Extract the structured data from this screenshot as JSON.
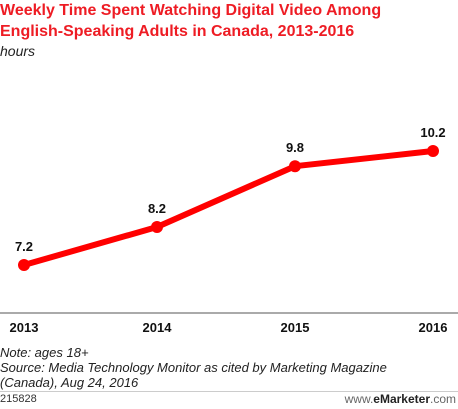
{
  "title_lines": [
    "Weekly Time Spent Watching Digital Video Among",
    "English-Speaking Adults in Canada, 2013-2016"
  ],
  "subtitle": "hours",
  "chart_data": {
    "type": "line",
    "title": "Weekly Time Spent Watching Digital Video Among English-Speaking Adults in Canada, 2013-2016",
    "subtitle": "hours",
    "categories": [
      "2013",
      "2014",
      "2015",
      "2016"
    ],
    "series": [
      {
        "values": [
          7.2,
          8.2,
          9.8,
          10.2
        ],
        "labels": [
          "7.2",
          "8.2",
          "9.8",
          "10.2"
        ],
        "color": "#ff0000"
      }
    ],
    "grid": false,
    "legend": "none"
  },
  "notes": {
    "note": "Note: ages 18+",
    "source_line1": "Source: Media Technology Monitor as cited by Marketing Magazine",
    "source_line2": "(Canada), Aug 24, 2016"
  },
  "footer": {
    "chart_id": "215828",
    "brand_prefix": "www.",
    "brand_name": "eMarketer",
    "brand_suffix": ".com"
  }
}
